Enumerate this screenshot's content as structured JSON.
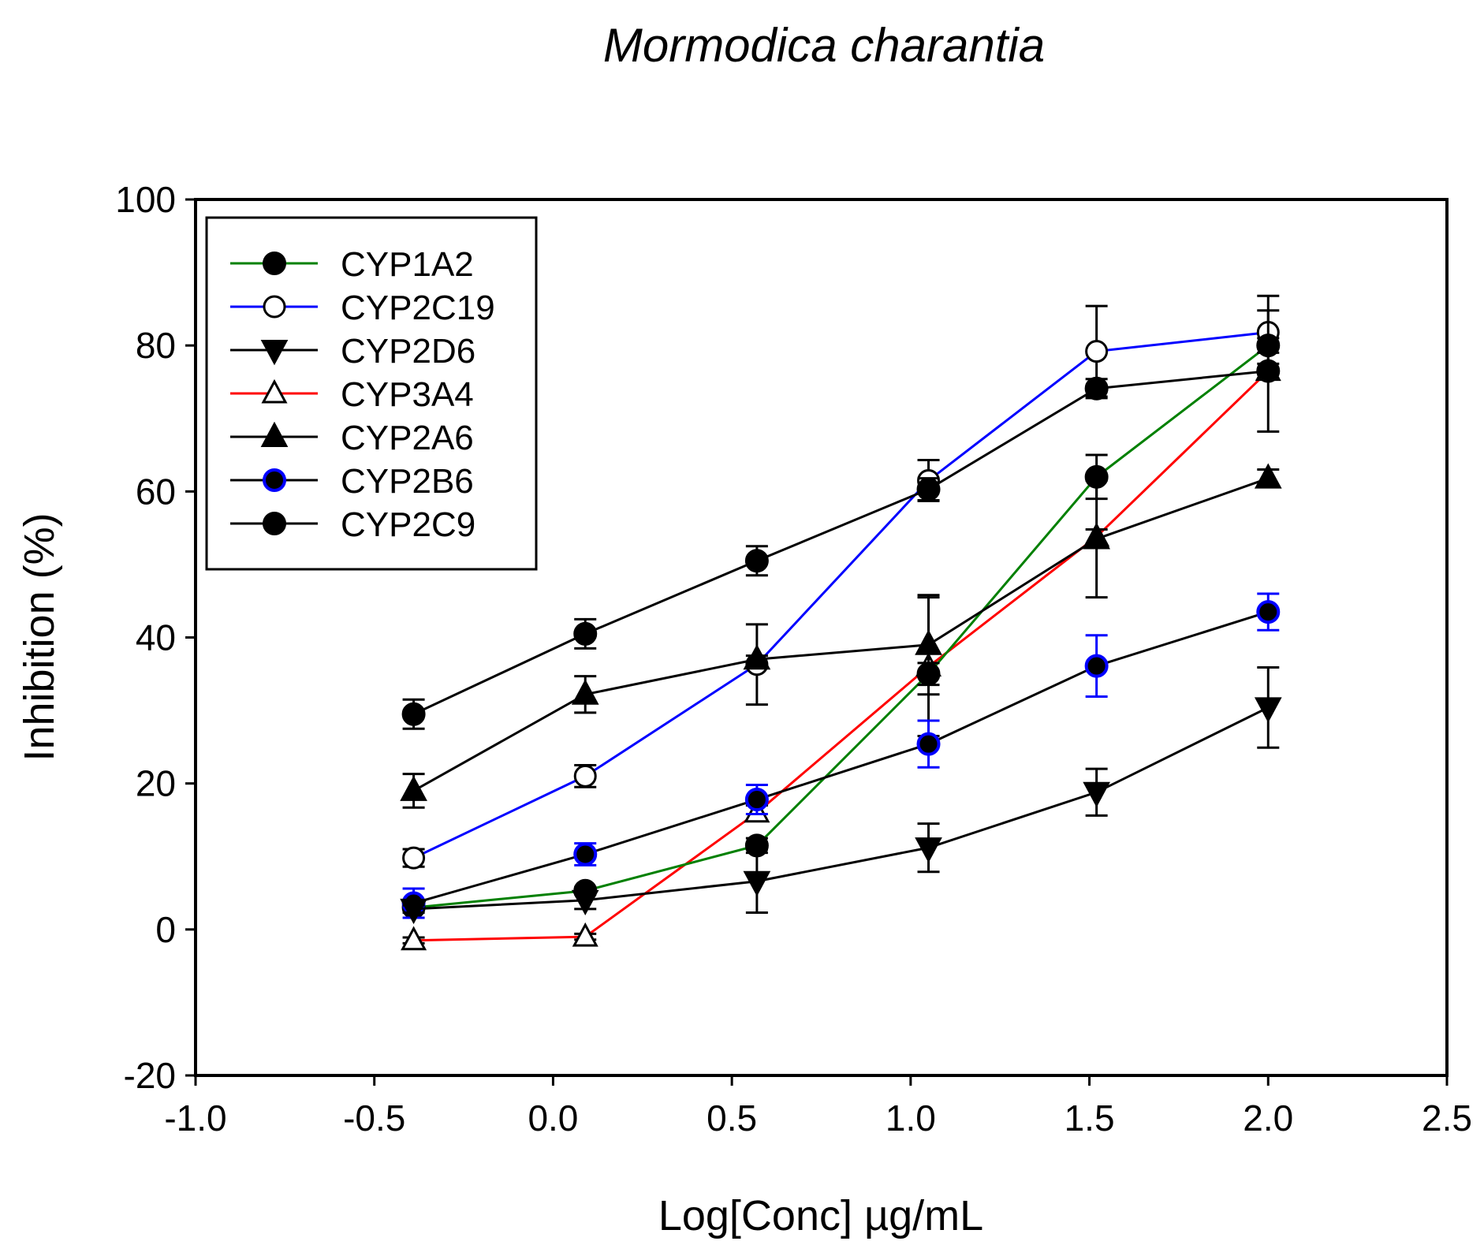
{
  "chart_data": {
    "type": "line",
    "title": "Mormodica charantia",
    "xlabel": "Log[Conc] µg/mL",
    "ylabel": "Inhibition (%)",
    "xlim": [
      -1.0,
      2.5
    ],
    "ylim": [
      -20,
      100
    ],
    "xticks": [
      -1.0,
      -0.5,
      0.0,
      0.5,
      1.0,
      1.5,
      2.0,
      2.5
    ],
    "xtick_labels": [
      "-1.0",
      "-0.5",
      "0.0",
      "0.5",
      "1.0",
      "1.5",
      "2.0",
      "2.5"
    ],
    "yticks": [
      -20,
      0,
      20,
      40,
      60,
      80,
      100
    ],
    "ytick_labels": [
      "-20",
      "0",
      "20",
      "40",
      "60",
      "80",
      "100"
    ],
    "legend_position": "top-left",
    "x": [
      -0.39,
      0.09,
      0.57,
      1.05,
      1.52,
      2.0
    ],
    "series": [
      {
        "name": "CYP1A2",
        "color": "#008000",
        "marker": "filled-circle",
        "marker_fill": "#000000",
        "marker_stroke": "#000000",
        "values": [
          3.0,
          5.3,
          11.5,
          35.0,
          62.0,
          80.0
        ],
        "errors": [
          0.5,
          0.5,
          1.0,
          1.5,
          3.0,
          1.0
        ]
      },
      {
        "name": "CYP2C19",
        "color": "#0000ff",
        "marker": "open-circle",
        "marker_fill": "#ffffff",
        "marker_stroke": "#000000",
        "values": [
          9.8,
          21.0,
          36.3,
          61.5,
          79.2,
          81.8
        ],
        "errors": [
          1.2,
          1.5,
          5.5,
          2.8,
          6.2,
          5.0
        ]
      },
      {
        "name": "CYP2D6",
        "color": "#000000",
        "marker": "filled-triangle-down",
        "marker_fill": "#000000",
        "marker_stroke": "#000000",
        "values": [
          2.8,
          4.0,
          6.6,
          11.2,
          18.8,
          30.4
        ],
        "errors": [
          0.5,
          1.2,
          4.3,
          3.3,
          3.2,
          5.5
        ]
      },
      {
        "name": "CYP3A4",
        "color": "#ff0000",
        "marker": "open-triangle-up",
        "marker_fill": "#ffffff",
        "marker_stroke": "#000000",
        "values": [
          -1.5,
          -1.0,
          16.0,
          36.0,
          53.8,
          76.5
        ],
        "errors": [
          0.4,
          0.4,
          1.0,
          9.5,
          1.0,
          1.0
        ]
      },
      {
        "name": "CYP2A6",
        "color": "#000000",
        "marker": "filled-triangle-up",
        "marker_fill": "#000000",
        "marker_stroke": "#000000",
        "values": [
          19.0,
          32.2,
          37.0,
          39.0,
          53.5,
          61.8
        ],
        "errors": [
          2.3,
          2.5,
          0.5,
          6.8,
          8.0,
          1.2
        ]
      },
      {
        "name": "CYP2B6",
        "color": "#000000",
        "marker": "filled-circle",
        "marker_fill": "#000000",
        "marker_stroke": "#0000ff",
        "error_color": "#0000ff",
        "values": [
          3.6,
          10.3,
          17.8,
          25.4,
          36.1,
          43.5
        ],
        "errors": [
          2.0,
          1.5,
          2.0,
          3.2,
          4.2,
          2.5
        ]
      },
      {
        "name": "CYP2C9",
        "color": "#000000",
        "marker": "filled-circle",
        "marker_fill": "#000000",
        "marker_stroke": "#000000",
        "values": [
          29.5,
          40.5,
          50.5,
          60.3,
          74.1,
          76.5
        ],
        "errors": [
          2.0,
          2.0,
          2.0,
          1.5,
          1.3,
          8.3
        ]
      }
    ]
  }
}
